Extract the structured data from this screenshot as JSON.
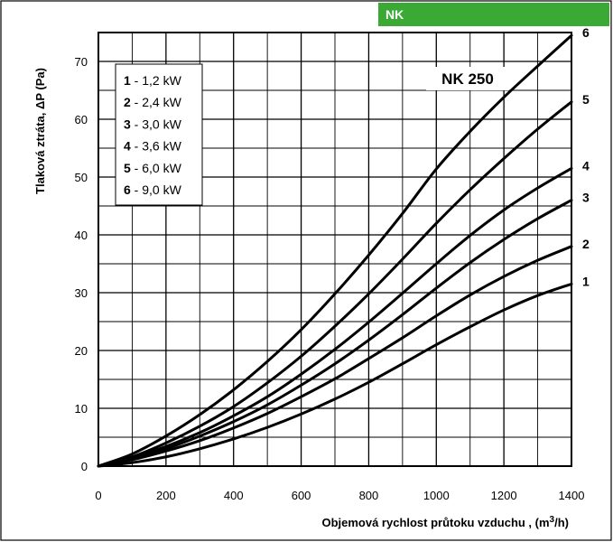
{
  "header": {
    "badge": "NK",
    "badge_color": "#3aaa35"
  },
  "chart_data": {
    "type": "line",
    "model_label": "NK 250",
    "xlabel_main": "Objemová rychlost průtoku vzduchu , (m",
    "xlabel_sup": "3",
    "xlabel_end": "/h)",
    "ylabel": "Tlaková ztráta, ΔP (Pa)",
    "xlim": [
      0,
      1400
    ],
    "ylim": [
      0,
      75
    ],
    "x_ticks": [
      "0",
      "200",
      "400",
      "600",
      "800",
      "1000",
      "1200",
      "1400"
    ],
    "y_ticks": [
      "0",
      "10",
      "20",
      "30",
      "40",
      "50",
      "60",
      "70"
    ],
    "grid": true,
    "legend_position": "top-left",
    "x": [
      0,
      100,
      200,
      300,
      400,
      500,
      600,
      700,
      800,
      900,
      1000,
      1100,
      1200,
      1300,
      1400
    ],
    "series": [
      {
        "id": "1",
        "name": "1,2 kW",
        "end_label": "1",
        "values": [
          0,
          0.6,
          1.6,
          3.0,
          4.7,
          6.7,
          9.0,
          11.6,
          14.5,
          17.7,
          21.0,
          24.1,
          27.0,
          29.5,
          31.5
        ]
      },
      {
        "id": "2",
        "name": "2,4 kW",
        "end_label": "2",
        "values": [
          0,
          1.1,
          2.6,
          4.4,
          6.6,
          9.1,
          12.0,
          15.1,
          18.6,
          22.2,
          26.0,
          29.6,
          32.8,
          35.6,
          38.0
        ]
      },
      {
        "id": "3",
        "name": "3,0 kW",
        "end_label": "3",
        "values": [
          0,
          1.3,
          3.0,
          5.2,
          7.7,
          10.6,
          14.0,
          17.7,
          21.8,
          26.2,
          30.8,
          35.2,
          39.2,
          42.8,
          46.0
        ]
      },
      {
        "id": "4",
        "name": "3,6 kW",
        "end_label": "4",
        "values": [
          0,
          1.5,
          3.4,
          5.8,
          8.7,
          12.0,
          15.9,
          20.2,
          24.9,
          29.9,
          35.0,
          39.9,
          44.3,
          48.1,
          51.5
        ]
      },
      {
        "id": "5",
        "name": "6,0 kW",
        "end_label": "5",
        "values": [
          0,
          1.6,
          4.0,
          6.9,
          10.3,
          14.4,
          19.0,
          24.2,
          29.8,
          35.8,
          42.0,
          47.8,
          53.2,
          58.3,
          63.0
        ]
      },
      {
        "id": "6",
        "name": "9,0 kW",
        "end_label": "6",
        "values": [
          0,
          2.1,
          5.2,
          8.9,
          13.2,
          18.1,
          23.6,
          29.8,
          36.5,
          43.7,
          51.4,
          57.9,
          63.8,
          69.2,
          74.5
        ]
      }
    ]
  }
}
